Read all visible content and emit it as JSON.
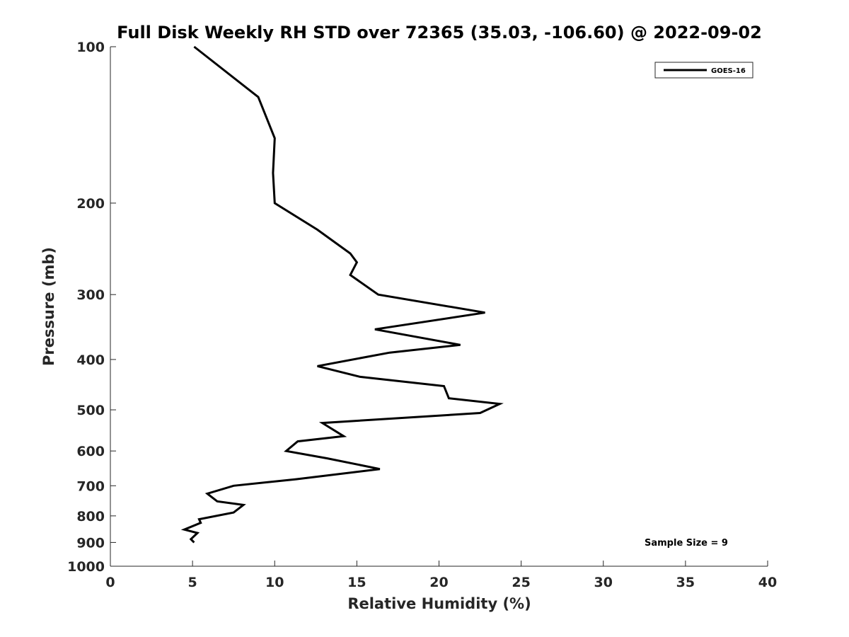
{
  "chart_data": {
    "type": "line",
    "title": "Full Disk Weekly RH STD over 72365 (35.03, -106.60) @ 2022-09-02",
    "xlabel": "Relative Humidity (%)",
    "ylabel": "Pressure (mb)",
    "xlim": [
      0,
      40
    ],
    "ylim": [
      100,
      1000
    ],
    "y_scale": "log",
    "y_reversed": true,
    "x_ticks": [
      0,
      5,
      10,
      15,
      20,
      25,
      30,
      35,
      40
    ],
    "y_ticks": [
      100,
      200,
      300,
      400,
      500,
      600,
      700,
      800,
      900,
      1000
    ],
    "grid": false,
    "legend_position": "top-right",
    "annotation": "Sample Size = 9",
    "series": [
      {
        "name": "GOES-16",
        "color": "#000000",
        "x": [
          5.1,
          9.0,
          10.0,
          9.9,
          10.0,
          12.6,
          14.6,
          15.0,
          14.6,
          16.3,
          22.8,
          16.1,
          21.3,
          17.0,
          12.6,
          15.2,
          20.3,
          20.6,
          23.7,
          22.5,
          12.9,
          14.2,
          11.4,
          10.7,
          13.2,
          16.4,
          11.3,
          7.5,
          5.9,
          6.5,
          8.1,
          7.5,
          5.4,
          5.5,
          4.5,
          5.3,
          4.9,
          5.1
        ],
        "y": [
          100,
          125,
          150,
          175,
          200,
          225,
          250,
          260,
          275,
          300,
          325,
          350,
          375,
          388,
          412,
          432,
          450,
          475,
          487,
          507,
          530,
          562,
          575,
          600,
          620,
          650,
          680,
          700,
          725,
          750,
          762,
          788,
          812,
          825,
          850,
          863,
          887,
          900
        ]
      }
    ]
  }
}
